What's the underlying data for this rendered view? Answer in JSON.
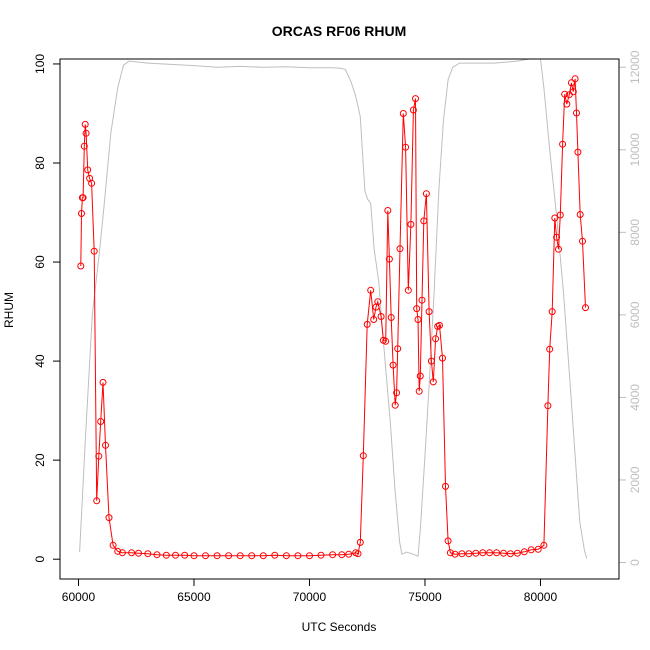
{
  "chart_data": {
    "type": "line",
    "title": "ORCAS RF06 RHUM",
    "xlabel": "UTC Seconds",
    "ylabel": "RHUM",
    "xlim": [
      59200,
      83400
    ],
    "ylim": [
      -4,
      101
    ],
    "y2lim": [
      -400,
      12200
    ],
    "grid": false,
    "legend": "none",
    "x_ticks": [
      60000,
      65000,
      70000,
      75000,
      80000
    ],
    "x_tick_labels": [
      "60000",
      "65000",
      "70000",
      "75000",
      "80000"
    ],
    "y_ticks": [
      0,
      20,
      40,
      60,
      80,
      100
    ],
    "y_tick_labels": [
      "0",
      "20",
      "40",
      "60",
      "80",
      "100"
    ],
    "y2_ticks": [
      0,
      2000,
      4000,
      6000,
      8000,
      10000,
      12000
    ],
    "y2_tick_labels": [
      "0",
      "2000",
      "4000",
      "6000",
      "8000",
      "10000",
      "12000"
    ],
    "series": [
      {
        "color": "#ff0000",
        "style": "line+circles",
        "axis": "left",
        "points": [
          [
            60100,
            59.2
          ],
          [
            60130,
            69.8
          ],
          [
            60170,
            73.0
          ],
          [
            60200,
            73.0
          ],
          [
            60250,
            83.4
          ],
          [
            60290,
            87.8
          ],
          [
            60330,
            86.0
          ],
          [
            60400,
            78.6
          ],
          [
            60480,
            76.9
          ],
          [
            60570,
            75.9
          ],
          [
            60680,
            62.2
          ],
          [
            60790,
            11.8
          ],
          [
            60880,
            20.8
          ],
          [
            60960,
            27.8
          ],
          [
            61060,
            35.7
          ],
          [
            61170,
            23.0
          ],
          [
            61320,
            8.4
          ],
          [
            61500,
            2.8
          ],
          [
            61700,
            1.6
          ],
          [
            61900,
            1.3
          ],
          [
            62300,
            1.3
          ],
          [
            62600,
            1.2
          ],
          [
            63000,
            1.1
          ],
          [
            63400,
            0.9
          ],
          [
            63800,
            0.8
          ],
          [
            64200,
            0.8
          ],
          [
            64600,
            0.8
          ],
          [
            65000,
            0.7
          ],
          [
            65500,
            0.7
          ],
          [
            66000,
            0.7
          ],
          [
            66500,
            0.7
          ],
          [
            67000,
            0.7
          ],
          [
            67500,
            0.7
          ],
          [
            68000,
            0.7
          ],
          [
            68500,
            0.8
          ],
          [
            69000,
            0.7
          ],
          [
            69500,
            0.7
          ],
          [
            70000,
            0.7
          ],
          [
            70500,
            0.8
          ],
          [
            71000,
            0.9
          ],
          [
            71400,
            0.9
          ],
          [
            71700,
            1.0
          ],
          [
            72000,
            1.3
          ],
          [
            72100,
            1.1
          ],
          [
            72200,
            3.4
          ],
          [
            72330,
            20.9
          ],
          [
            72500,
            47.4
          ],
          [
            72650,
            54.3
          ],
          [
            72780,
            48.4
          ],
          [
            72880,
            50.9
          ],
          [
            72960,
            52.0
          ],
          [
            73100,
            49.0
          ],
          [
            73200,
            44.2
          ],
          [
            73300,
            44.0
          ],
          [
            73390,
            70.4
          ],
          [
            73460,
            60.6
          ],
          [
            73540,
            48.8
          ],
          [
            73620,
            39.2
          ],
          [
            73710,
            31.1
          ],
          [
            73770,
            33.6
          ],
          [
            73820,
            42.5
          ],
          [
            73920,
            62.7
          ],
          [
            74060,
            90.0
          ],
          [
            74160,
            83.2
          ],
          [
            74280,
            54.3
          ],
          [
            74390,
            67.6
          ],
          [
            74500,
            90.7
          ],
          [
            74590,
            93.0
          ],
          [
            74640,
            50.6
          ],
          [
            74700,
            48.4
          ],
          [
            74750,
            33.9
          ],
          [
            74800,
            37.0
          ],
          [
            74870,
            52.3
          ],
          [
            74950,
            68.3
          ],
          [
            75060,
            73.8
          ],
          [
            75180,
            50.0
          ],
          [
            75280,
            40.0
          ],
          [
            75360,
            35.8
          ],
          [
            75460,
            44.5
          ],
          [
            75550,
            47.0
          ],
          [
            75630,
            47.2
          ],
          [
            75760,
            40.6
          ],
          [
            75890,
            14.7
          ],
          [
            76000,
            3.7
          ],
          [
            76100,
            1.3
          ],
          [
            76300,
            1.0
          ],
          [
            76600,
            1.1
          ],
          [
            76900,
            1.1
          ],
          [
            77200,
            1.2
          ],
          [
            77500,
            1.3
          ],
          [
            77800,
            1.3
          ],
          [
            78100,
            1.3
          ],
          [
            78400,
            1.2
          ],
          [
            78700,
            1.1
          ],
          [
            79000,
            1.2
          ],
          [
            79300,
            1.5
          ],
          [
            79600,
            1.9
          ],
          [
            79900,
            2.0
          ],
          [
            80150,
            2.8
          ],
          [
            80320,
            31.0
          ],
          [
            80400,
            42.4
          ],
          [
            80510,
            50.0
          ],
          [
            80620,
            68.9
          ],
          [
            80700,
            65.0
          ],
          [
            80780,
            62.6
          ],
          [
            80860,
            69.5
          ],
          [
            80960,
            83.8
          ],
          [
            81050,
            93.9
          ],
          [
            81140,
            91.9
          ],
          [
            81250,
            93.8
          ],
          [
            81340,
            96.2
          ],
          [
            81420,
            94.4
          ],
          [
            81500,
            97.0
          ],
          [
            81560,
            90.1
          ],
          [
            81620,
            82.2
          ],
          [
            81720,
            69.6
          ],
          [
            81820,
            64.2
          ],
          [
            81950,
            50.8
          ]
        ]
      },
      {
        "color": "#bebebe",
        "style": "line",
        "axis": "right",
        "points": [
          [
            60050,
            250
          ],
          [
            60300,
            3000
          ],
          [
            60600,
            6000
          ],
          [
            60900,
            7500
          ],
          [
            61100,
            8600
          ],
          [
            61400,
            10400
          ],
          [
            61700,
            11500
          ],
          [
            61950,
            12050
          ],
          [
            62200,
            12150
          ],
          [
            63000,
            12100
          ],
          [
            64000,
            12070
          ],
          [
            65000,
            12040
          ],
          [
            66000,
            12000
          ],
          [
            67000,
            12020
          ],
          [
            68000,
            12000
          ],
          [
            69000,
            12010
          ],
          [
            70000,
            11990
          ],
          [
            71000,
            11990
          ],
          [
            71300,
            11980
          ],
          [
            71550,
            11950
          ],
          [
            71800,
            11650
          ],
          [
            72000,
            11300
          ],
          [
            72200,
            10800
          ],
          [
            72400,
            9000
          ],
          [
            72520,
            8800
          ],
          [
            72650,
            8700
          ],
          [
            72800,
            7600
          ],
          [
            73000,
            6800
          ],
          [
            73150,
            5700
          ],
          [
            73300,
            4700
          ],
          [
            73500,
            3400
          ],
          [
            73700,
            1800
          ],
          [
            73900,
            500
          ],
          [
            74000,
            200
          ],
          [
            74200,
            250
          ],
          [
            74500,
            200
          ],
          [
            74700,
            150
          ],
          [
            74800,
            800
          ],
          [
            75000,
            2600
          ],
          [
            75200,
            4500
          ],
          [
            75400,
            6600
          ],
          [
            75600,
            9000
          ],
          [
            75800,
            10700
          ],
          [
            76000,
            11700
          ],
          [
            76200,
            12000
          ],
          [
            76500,
            12100
          ],
          [
            77000,
            12100
          ],
          [
            78000,
            12100
          ],
          [
            79000,
            12150
          ],
          [
            79500,
            12200
          ],
          [
            80000,
            12200
          ],
          [
            80150,
            11500
          ],
          [
            80400,
            10000
          ],
          [
            80700,
            8400
          ],
          [
            81000,
            6500
          ],
          [
            81300,
            4200
          ],
          [
            81500,
            2600
          ],
          [
            81700,
            1000
          ],
          [
            81900,
            300
          ],
          [
            82000,
            100
          ]
        ]
      }
    ]
  }
}
